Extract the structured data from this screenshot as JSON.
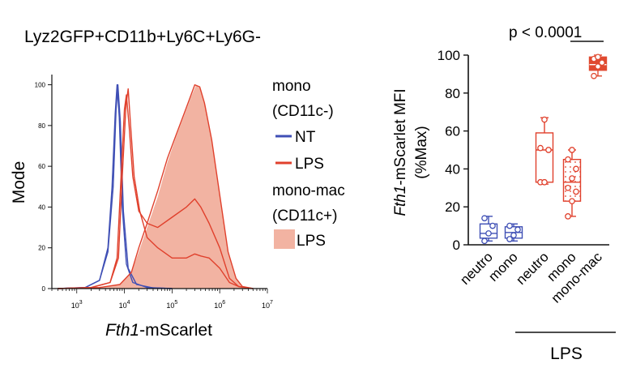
{
  "colors": {
    "nt": "#3f4fb5",
    "lps": "#e0402c",
    "lps_fill": "#f2b3a2",
    "mono_mac": "#e04a30",
    "axis": "#111111"
  },
  "chart_data": [
    {
      "type": "area",
      "title": "Lyz2GFP+CD11b+Ly6C+Ly6G-",
      "xlabel_italic": "Fth1",
      "xlabel_rest": "-mScarlet",
      "ylabel": "Mode",
      "x_scale": "log",
      "xlim": [
        300,
        10000000
      ],
      "ylim": [
        0,
        105
      ],
      "x_ticks": [
        {
          "value": 1000,
          "base": "10",
          "exp": "3"
        },
        {
          "value": 10000,
          "base": "10",
          "exp": "4"
        },
        {
          "value": 100000,
          "base": "10",
          "exp": "5"
        },
        {
          "value": 1000000,
          "base": "10",
          "exp": "6"
        },
        {
          "value": 10000000,
          "base": "10",
          "exp": "7"
        }
      ],
      "y_ticks": [
        "0",
        "20",
        "40",
        "60",
        "80",
        "100"
      ],
      "legend": {
        "group1_title": "mono",
        "group1_sub": "(CD11c-)",
        "nt_label": "NT",
        "lps_label": "LPS",
        "group2_title": "mono-mac",
        "group2_sub": "(CD11c+)",
        "fill_label": "LPS"
      },
      "series": [
        {
          "group": "mono-NT",
          "style": "nt",
          "points": [
            [
              400,
              0
            ],
            [
              1500,
              0.5
            ],
            [
              3000,
              4
            ],
            [
              4500,
              20
            ],
            [
              5500,
              50
            ],
            [
              6400,
              86
            ],
            [
              7000,
              100
            ],
            [
              7800,
              84
            ],
            [
              9000,
              40
            ],
            [
              11000,
              12
            ],
            [
              15000,
              3
            ],
            [
              30000,
              0.5
            ],
            [
              100000,
              0
            ]
          ]
        },
        {
          "group": "mono-NT",
          "style": "nt",
          "points": [
            [
              400,
              0
            ],
            [
              1500,
              0.5
            ],
            [
              3000,
              4
            ],
            [
              4500,
              18
            ],
            [
              5800,
              50
            ],
            [
              6700,
              88
            ],
            [
              7300,
              100
            ],
            [
              8200,
              82
            ],
            [
              9500,
              38
            ],
            [
              12000,
              10
            ],
            [
              18000,
              2
            ],
            [
              40000,
              0.3
            ],
            [
              100000,
              0
            ]
          ]
        },
        {
          "group": "mono-LPS",
          "style": "lps",
          "points": [
            [
              400,
              0
            ],
            [
              2000,
              0.5
            ],
            [
              5000,
              3
            ],
            [
              7000,
              15
            ],
            [
              8500,
              55
            ],
            [
              10000,
              88
            ],
            [
              11000,
              95
            ],
            [
              12500,
              80
            ],
            [
              15000,
              55
            ],
            [
              20000,
              38
            ],
            [
              30000,
              32
            ],
            [
              50000,
              30
            ],
            [
              100000,
              35
            ],
            [
              200000,
              40
            ],
            [
              300000,
              44
            ],
            [
              400000,
              40
            ],
            [
              600000,
              32
            ],
            [
              1000000,
              20
            ],
            [
              1600000,
              5
            ],
            [
              2500000,
              1
            ],
            [
              5000000,
              0
            ]
          ]
        },
        {
          "group": "mono-LPS",
          "style": "lps",
          "points": [
            [
              400,
              0
            ],
            [
              2000,
              0.5
            ],
            [
              5000,
              3
            ],
            [
              7500,
              15
            ],
            [
              9000,
              55
            ],
            [
              10800,
              90
            ],
            [
              12000,
              98
            ],
            [
              13500,
              80
            ],
            [
              16000,
              55
            ],
            [
              21000,
              38
            ],
            [
              30000,
              25
            ],
            [
              50000,
              20
            ],
            [
              100000,
              15
            ],
            [
              200000,
              15
            ],
            [
              300000,
              17
            ],
            [
              400000,
              16
            ],
            [
              600000,
              15
            ],
            [
              1000000,
              10
            ],
            [
              1600000,
              3
            ],
            [
              2500000,
              1
            ],
            [
              5000000,
              0
            ]
          ]
        },
        {
          "group": "mono-mac-LPS",
          "style": "fill",
          "points": [
            [
              400,
              0
            ],
            [
              3000,
              0.5
            ],
            [
              8000,
              2
            ],
            [
              14000,
              8
            ],
            [
              20000,
              18
            ],
            [
              30000,
              30
            ],
            [
              50000,
              45
            ],
            [
              80000,
              62
            ],
            [
              120000,
              74
            ],
            [
              180000,
              85
            ],
            [
              250000,
              94
            ],
            [
              320000,
              100
            ],
            [
              400000,
              98
            ],
            [
              500000,
              90
            ],
            [
              700000,
              72
            ],
            [
              1000000,
              45
            ],
            [
              1500000,
              18
            ],
            [
              2200000,
              5
            ],
            [
              3000000,
              1
            ],
            [
              5000000,
              0
            ]
          ]
        },
        {
          "group": "mono-mac-LPS",
          "style": "lps",
          "points": [
            [
              400,
              0
            ],
            [
              3000,
              0.5
            ],
            [
              8000,
              2
            ],
            [
              14000,
              8
            ],
            [
              20000,
              20
            ],
            [
              30000,
              32
            ],
            [
              50000,
              48
            ],
            [
              80000,
              64
            ],
            [
              120000,
              75
            ],
            [
              180000,
              86
            ],
            [
              250000,
              95
            ],
            [
              300000,
              100
            ],
            [
              380000,
              99
            ],
            [
              480000,
              91
            ],
            [
              680000,
              73
            ],
            [
              1000000,
              46
            ],
            [
              1500000,
              18
            ],
            [
              2200000,
              5
            ],
            [
              3000000,
              1
            ],
            [
              5000000,
              0
            ]
          ]
        }
      ]
    },
    {
      "type": "box",
      "title": "",
      "ylabel_italic": "Fth1",
      "ylabel_rest": "-mScarlet MFI",
      "ylabel2": "(%Max)",
      "ylim": [
        0,
        100
      ],
      "y_ticks": [
        "0",
        "20",
        "40",
        "60",
        "80",
        "100"
      ],
      "categories": [
        "neutro",
        "mono",
        "neutro",
        "mono",
        "mono-mac"
      ],
      "group_label": "LPS",
      "significance": "p < 0.0001",
      "series": [
        {
          "category": "neutro",
          "color": "nt",
          "fill": "none",
          "min": 2,
          "q1": 3.5,
          "median": 6,
          "q3": 11,
          "max": 15,
          "points": [
            2,
            6,
            10,
            14
          ]
        },
        {
          "category": "mono",
          "color": "nt",
          "fill": "none",
          "min": 2,
          "q1": 3.5,
          "median": 6.5,
          "q3": 9.5,
          "max": 11,
          "points": [
            3,
            5,
            8,
            10
          ]
        },
        {
          "category": "neutro",
          "color": "lps",
          "fill": "none",
          "min": 32,
          "q1": 33,
          "median": 50,
          "q3": 59,
          "max": 67,
          "points": [
            33,
            33,
            50,
            51,
            66
          ]
        },
        {
          "category": "mono",
          "color": "lps",
          "fill": "dotted",
          "min": 15,
          "q1": 23,
          "median": 33,
          "q3": 45,
          "max": 50,
          "points": [
            15,
            23,
            28,
            30,
            35,
            40,
            45,
            50
          ]
        },
        {
          "category": "mono-mac",
          "color": "mono_mac",
          "fill": "solid",
          "min": 89,
          "q1": 92,
          "median": 95,
          "q3": 99,
          "max": 100,
          "points": [
            89,
            94,
            96,
            98,
            99
          ]
        }
      ]
    }
  ]
}
